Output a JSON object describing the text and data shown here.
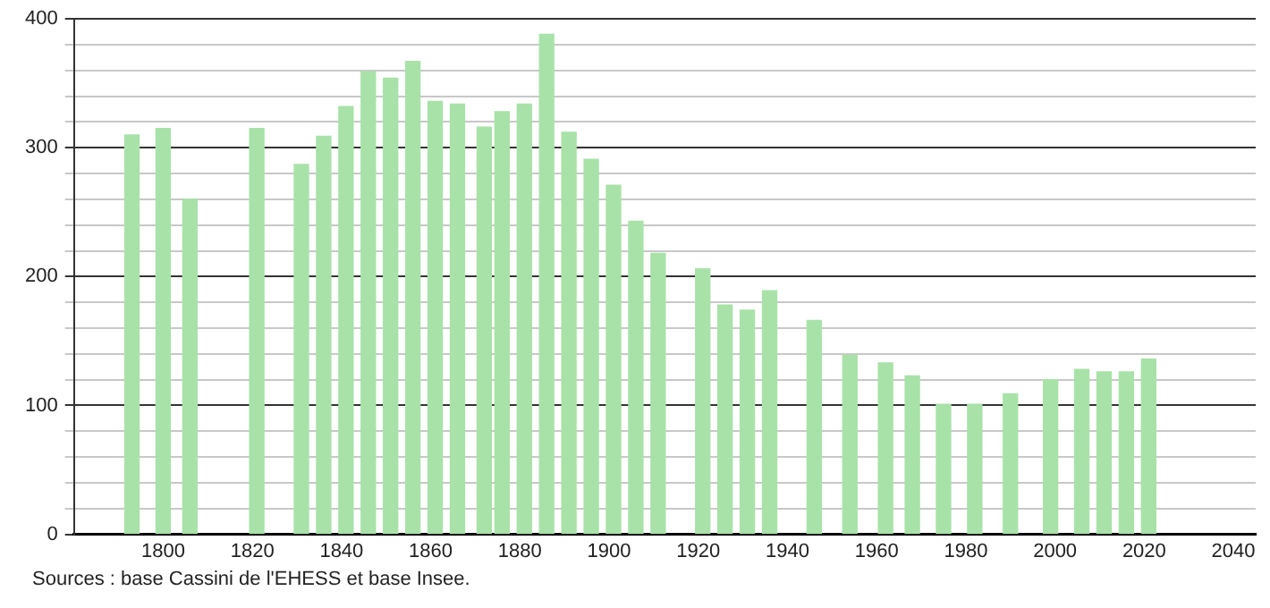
{
  "chart_data": {
    "type": "bar",
    "x": [
      1793,
      1800,
      1806,
      1821,
      1831,
      1836,
      1841,
      1846,
      1851,
      1856,
      1861,
      1866,
      1872,
      1876,
      1881,
      1886,
      1891,
      1896,
      1901,
      1906,
      1911,
      1921,
      1926,
      1931,
      1936,
      1946,
      1954,
      1962,
      1968,
      1975,
      1982,
      1990,
      1999,
      2006,
      2011,
      2016,
      2021
    ],
    "values": [
      310,
      315,
      260,
      315,
      287,
      309,
      332,
      359,
      354,
      367,
      336,
      334,
      316,
      328,
      334,
      388,
      312,
      291,
      271,
      243,
      218,
      206,
      178,
      174,
      189,
      166,
      139,
      133,
      123,
      101,
      101,
      109,
      120,
      128,
      126,
      126,
      136
    ],
    "color": "#a8e2a8",
    "xlim": [
      1780,
      2045
    ],
    "xticks": [
      1800,
      1820,
      1840,
      1860,
      1880,
      1900,
      1920,
      1940,
      1960,
      1980,
      2000,
      2020,
      2040
    ],
    "ylim": [
      0,
      400
    ],
    "yticks": [
      0,
      {
        "value": 20,
        "label": null
      },
      {
        "value": 40,
        "label": null
      },
      {
        "value": 60,
        "label": null
      },
      {
        "value": 80,
        "label": null
      },
      100,
      {
        "value": 120,
        "label": null
      },
      {
        "value": 140,
        "label": null
      },
      {
        "value": 160,
        "label": null
      },
      {
        "value": 180,
        "label": null
      },
      200,
      {
        "value": 220,
        "label": null
      },
      {
        "value": 240,
        "label": null
      },
      {
        "value": 260,
        "label": null
      },
      {
        "value": 280,
        "label": null
      },
      300,
      {
        "value": 320,
        "label": null
      },
      {
        "value": 340,
        "label": null
      },
      {
        "value": 360,
        "label": null
      },
      {
        "value": 380,
        "label": null
      },
      400
    ],
    "grid": "y",
    "annotations": [
      "Sources : base Cassini de l'EHESS et base Insee."
    ]
  }
}
